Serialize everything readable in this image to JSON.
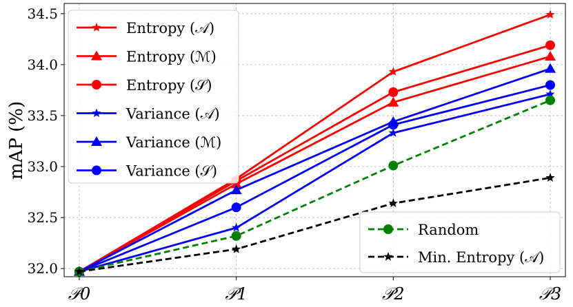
{
  "chart_data": {
    "type": "line",
    "xlabel": "",
    "ylabel": "mAP (%)",
    "categories": [
      "𝒫0",
      "𝒫1",
      "𝒫2",
      "𝒫3"
    ],
    "ylim": [
      31.92,
      34.6
    ],
    "yticks": [
      32.0,
      32.5,
      33.0,
      33.5,
      34.0,
      34.5
    ],
    "ytick_labels": [
      "32.0",
      "32.5",
      "33.0",
      "33.5",
      "34.0",
      "34.5"
    ],
    "grid": true,
    "legends": [
      {
        "placement": "upper-left",
        "series_indices": [
          0,
          1,
          2,
          3,
          4,
          5
        ]
      },
      {
        "placement": "lower-right",
        "series_indices": [
          6,
          7
        ]
      }
    ],
    "series": [
      {
        "name": "Entropy (𝒜)",
        "color": "#ff0000",
        "marker": "star",
        "dashed": false,
        "values": [
          31.97,
          32.88,
          33.93,
          34.49
        ]
      },
      {
        "name": "Entropy (ℳ)",
        "color": "#ff0000",
        "marker": "triangle",
        "dashed": false,
        "values": [
          31.97,
          32.83,
          33.63,
          34.08
        ]
      },
      {
        "name": "Entropy (𝒮)",
        "color": "#ff0000",
        "marker": "circle",
        "dashed": false,
        "values": [
          31.97,
          32.86,
          33.73,
          34.19
        ]
      },
      {
        "name": "Variance (𝒜)",
        "color": "#0000ff",
        "marker": "star",
        "dashed": false,
        "values": [
          31.97,
          32.4,
          33.33,
          33.71
        ]
      },
      {
        "name": "Variance (ℳ)",
        "color": "#0000ff",
        "marker": "triangle",
        "dashed": false,
        "values": [
          31.97,
          32.77,
          33.44,
          33.96
        ]
      },
      {
        "name": "Variance (𝒮)",
        "color": "#0000ff",
        "marker": "circle",
        "dashed": false,
        "values": [
          31.97,
          32.6,
          33.41,
          33.8
        ]
      },
      {
        "name": "Random",
        "color": "#008000",
        "marker": "circle",
        "dashed": true,
        "values": [
          31.97,
          32.32,
          33.01,
          33.65
        ]
      },
      {
        "name": "Min. Entropy (𝒜)",
        "color": "#000000",
        "marker": "star",
        "dashed": true,
        "values": [
          31.97,
          32.19,
          32.64,
          32.89
        ]
      }
    ]
  }
}
